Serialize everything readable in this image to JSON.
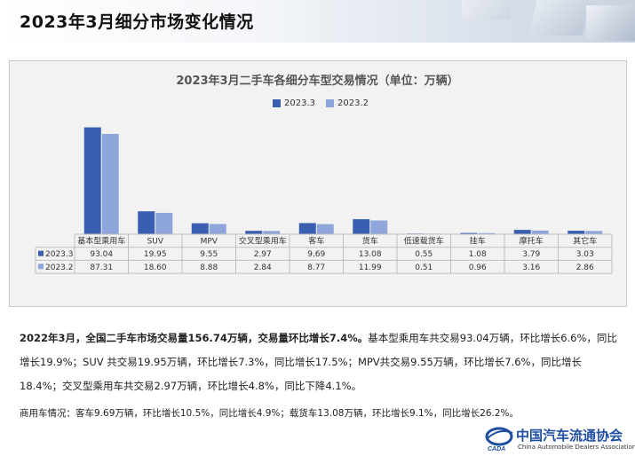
{
  "page": {
    "title": "2023年3月细分市场变化情况"
  },
  "chart_data": {
    "type": "bar",
    "title": "2023年3月二手车各细分车型交易情况（单位：万辆）",
    "categories": [
      "基本型乘用车",
      "SUV",
      "MPV",
      "交叉型乘用车",
      "客车",
      "货车",
      "低速载货车",
      "挂车",
      "摩托车",
      "其它车"
    ],
    "series": [
      {
        "name": "2023.3",
        "values": [
          93.04,
          19.95,
          9.55,
          2.97,
          9.69,
          13.08,
          0.55,
          1.08,
          3.79,
          3.03
        ],
        "value_labels": [
          "93.04",
          "19.95",
          "9.55",
          "2.97",
          "9.69",
          "13.08",
          "0.55",
          "1.08",
          "3.79",
          "3.03"
        ]
      },
      {
        "name": "2023.2",
        "values": [
          87.31,
          18.6,
          8.88,
          2.84,
          8.77,
          11.99,
          0.51,
          0.96,
          3.16,
          2.86
        ],
        "value_labels": [
          "87.31",
          "18.60",
          "8.88",
          "2.84",
          "8.77",
          "11.99",
          "0.51",
          "0.96",
          "3.16",
          "2.86"
        ]
      }
    ],
    "legend_position": "top-center",
    "data_table": true,
    "colors": {
      "2023.3": "#3a5fb0",
      "2023.2": "#8fa6dc"
    }
  },
  "text": {
    "p1_bold": "2022年3月，全国二手车市场交易量156.74万辆，交易量环比增长7.4%。",
    "p1_rest": "基本型乘用车共交易93.04万辆，环比增长6.6%，同比增长19.9%；SUV 共交易19.95万辆，环比增长7.3%，同比增长17.5%；MPV共交易9.55万辆，环比增长7.6%，同比增长18.4%；交叉型乘用车共交易2.97万辆，环比增长4.8%，同比下降4.1%。",
    "p2": "商用车情况：客车9.69万辆，环比增长10.5%，同比增长4.9%；载货车13.08万辆，环比增长9.1%，同比增长26.2%。"
  },
  "logo": {
    "name_cn": "中国汽车流通协会",
    "name_en": "China Automobile Dealers Association",
    "mark": "CADA"
  }
}
